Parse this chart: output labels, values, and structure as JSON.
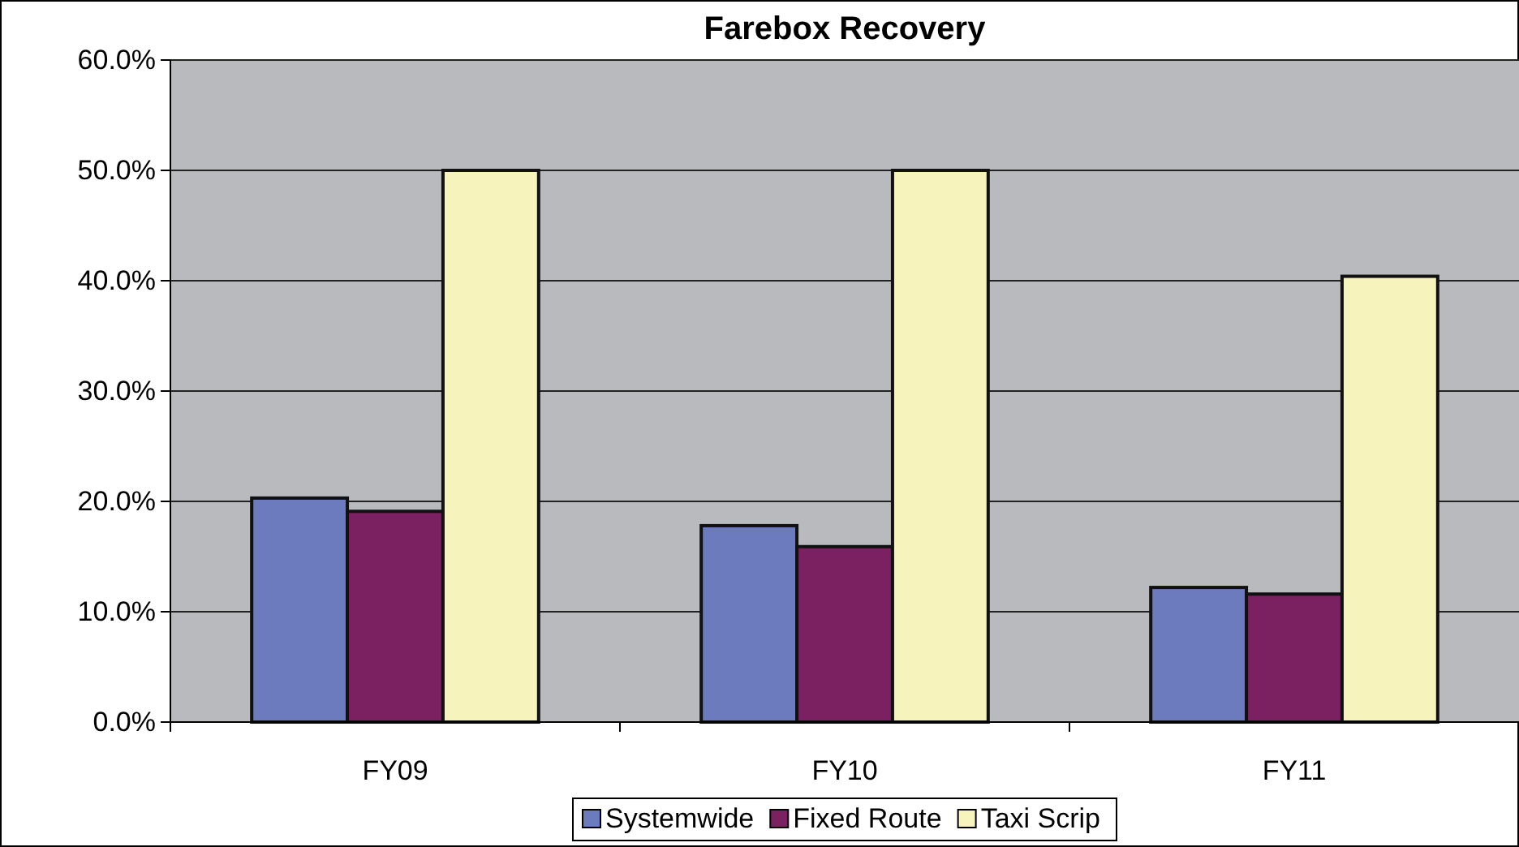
{
  "chart_data": {
    "type": "bar",
    "title": "Farebox Recovery",
    "categories": [
      "FY09",
      "FY10",
      "FY11"
    ],
    "series": [
      {
        "name": "Systemwide",
        "color": "#6b7bbd",
        "values": [
          20.3,
          17.8,
          12.2
        ]
      },
      {
        "name": "Fixed Route",
        "color": "#7b2060",
        "values": [
          19.1,
          15.9,
          11.6
        ]
      },
      {
        "name": "Taxi Scrip",
        "color": "#f7f3bd",
        "values": [
          50.0,
          50.0,
          40.4
        ]
      }
    ],
    "ylim": [
      0,
      60
    ],
    "yticks": [
      {
        "value": 0,
        "label": "0.0%"
      },
      {
        "value": 10,
        "label": "10.0%"
      },
      {
        "value": 20,
        "label": "20.0%"
      },
      {
        "value": 30,
        "label": "30.0%"
      },
      {
        "value": 40,
        "label": "40.0%"
      },
      {
        "value": 50,
        "label": "50.0%"
      },
      {
        "value": 60,
        "label": "60.0%"
      }
    ],
    "grid": "y",
    "legend": "bottom"
  }
}
